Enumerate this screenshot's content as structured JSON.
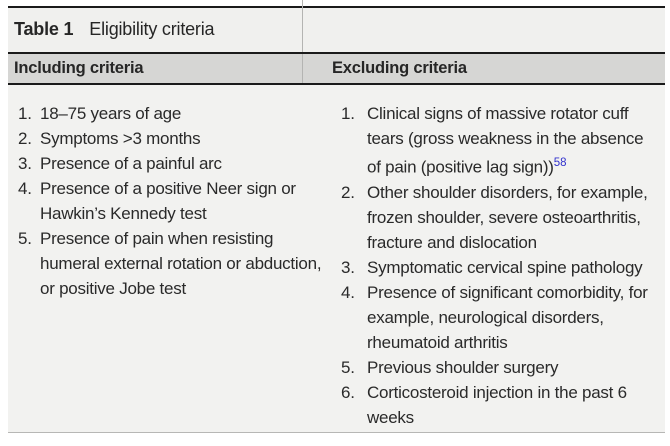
{
  "table": {
    "label": "Table 1",
    "title": "Eligibility criteria",
    "columns": [
      {
        "header": "Including criteria",
        "items": [
          "18–75 years of age",
          "Symptoms >3 months",
          "Presence of a painful arc",
          "Presence of a positive Neer sign or Hawkin’s Kennedy test",
          "Presence of pain when resisting humeral external rotation or abduction, or positive Jobe test"
        ]
      },
      {
        "header": "Excluding criteria",
        "items": [
          "Clinical signs of massive rotator cuff tears (gross weakness in the absence of pain (positive lag sign))",
          "Other shoulder disorders, for example, frozen shoulder, severe osteoarthritis, fracture and dislocation",
          "Symptomatic cervical spine pathology",
          "Presence of significant comorbidity, for example, neurological disorders, rheumatoid arthritis",
          "Previous shoulder surgery",
          "Corticosteroid injection in the past 6 weeks"
        ],
        "reference_marker": "58"
      }
    ],
    "colors": {
      "caption_background": "#f0f0ee",
      "header_background": "#d6d6d4",
      "body_background": "#f2f2f0",
      "dark_rule": "#1a1a1a",
      "light_rule": "#b7b7b5",
      "text": "#262626",
      "reference_link": "#3232cd"
    }
  }
}
